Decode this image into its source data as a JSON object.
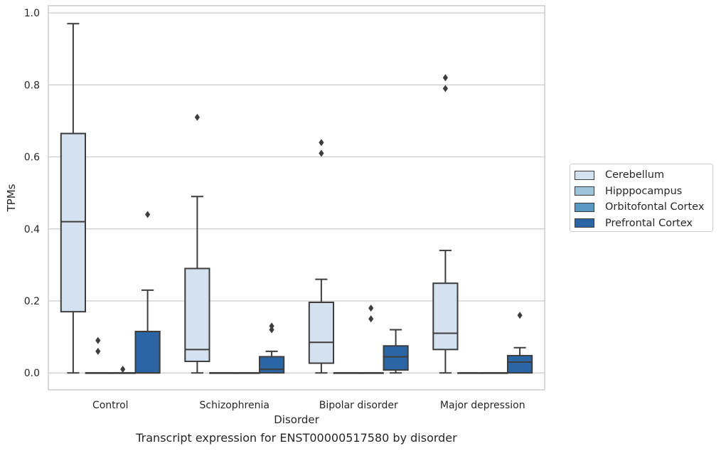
{
  "chart_data": {
    "type": "box",
    "xlabel": "Disorder",
    "ylabel": "TPMs",
    "caption": "Transcript expression for ENST00000517580 by disorder",
    "ylim": [
      -0.047,
      1.02
    ],
    "yticks": [
      0.0,
      0.2,
      0.4,
      0.6,
      0.8,
      1.0
    ],
    "ytick_labels": [
      "0.0",
      "0.2",
      "0.4",
      "0.6",
      "0.8",
      "1.0"
    ],
    "grid": "horizontal",
    "legend_position": "right",
    "categories": [
      "Control",
      "Schizophrenia",
      "Bipolar disorder",
      "Major depression"
    ],
    "series": [
      {
        "name": "Cerebellum",
        "color": "#d3e1f0",
        "boxes": [
          {
            "min": 0.0,
            "q1": 0.17,
            "median": 0.42,
            "q3": 0.665,
            "max": 0.97,
            "outliers": []
          },
          {
            "min": 0.0,
            "q1": 0.032,
            "median": 0.065,
            "q3": 0.29,
            "max": 0.49,
            "outliers": [
              0.71
            ]
          },
          {
            "min": 0.0,
            "q1": 0.027,
            "median": 0.085,
            "q3": 0.196,
            "max": 0.26,
            "outliers": [
              0.61,
              0.64
            ]
          },
          {
            "min": 0.0,
            "q1": 0.065,
            "median": 0.11,
            "q3": 0.249,
            "max": 0.34,
            "outliers": [
              0.79,
              0.82
            ]
          }
        ]
      },
      {
        "name": "Hipppocampus",
        "color": "#9ec3db",
        "boxes": [
          {
            "min": 0.0,
            "q1": 0.0,
            "median": 0.0,
            "q3": 0.0,
            "max": 0.0,
            "outliers": [
              0.06,
              0.09
            ]
          },
          {
            "min": 0.0,
            "q1": 0.0,
            "median": 0.0,
            "q3": 0.0,
            "max": 0.0,
            "outliers": []
          },
          {
            "min": 0.0,
            "q1": 0.0,
            "median": 0.0,
            "q3": 0.0,
            "max": 0.0,
            "outliers": []
          },
          {
            "min": 0.0,
            "q1": 0.0,
            "median": 0.0,
            "q3": 0.0,
            "max": 0.0,
            "outliers": []
          }
        ]
      },
      {
        "name": "Orbitofontal Cortex",
        "color": "#5a98c4",
        "boxes": [
          {
            "min": 0.0,
            "q1": 0.0,
            "median": 0.0,
            "q3": 0.0,
            "max": 0.0,
            "outliers": [
              0.01
            ]
          },
          {
            "min": 0.0,
            "q1": 0.0,
            "median": 0.0,
            "q3": 0.0,
            "max": 0.0,
            "outliers": []
          },
          {
            "min": 0.0,
            "q1": 0.0,
            "median": 0.0,
            "q3": 0.0,
            "max": 0.0,
            "outliers": [
              0.15,
              0.18
            ]
          },
          {
            "min": 0.0,
            "q1": 0.0,
            "median": 0.0,
            "q3": 0.0,
            "max": 0.0,
            "outliers": []
          }
        ]
      },
      {
        "name": "Prefrontal Cortex",
        "color": "#2a65a6",
        "boxes": [
          {
            "min": 0.0,
            "q1": 0.0,
            "median": 0.0,
            "q3": 0.115,
            "max": 0.23,
            "outliers": [
              0.44
            ]
          },
          {
            "min": 0.0,
            "q1": 0.0,
            "median": 0.01,
            "q3": 0.045,
            "max": 0.06,
            "outliers": [
              0.12,
              0.13
            ]
          },
          {
            "min": 0.0,
            "q1": 0.008,
            "median": 0.045,
            "q3": 0.075,
            "max": 0.12,
            "outliers": []
          },
          {
            "min": 0.0,
            "q1": 0.0,
            "median": 0.03,
            "q3": 0.048,
            "max": 0.07,
            "outliers": [
              0.16
            ]
          }
        ]
      }
    ]
  }
}
